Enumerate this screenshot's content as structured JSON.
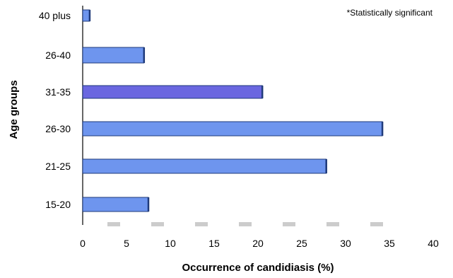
{
  "chart_data": {
    "type": "bar",
    "orientation": "horizontal",
    "categories": [
      "40 plus",
      "26-40",
      "31-35",
      "26-30",
      "21-25",
      "15-20"
    ],
    "values": [
      0.8,
      7.0,
      20.5,
      34.2,
      27.8,
      7.5
    ],
    "xlabel": "Occurrence of candidiasis (%)",
    "ylabel": "Age groups",
    "xlim": [
      0,
      40
    ],
    "xticks": [
      0,
      5,
      10,
      15,
      20,
      25,
      30,
      35,
      40
    ],
    "annotation": "*Statistically significant",
    "grid": false,
    "colors": {
      "bar_fill": "#6e95ee",
      "bar_fill_alt": "#6a67e0",
      "bar_edge": "#1f3a7a",
      "axis": "#333333",
      "dash": "#cccccc"
    }
  }
}
